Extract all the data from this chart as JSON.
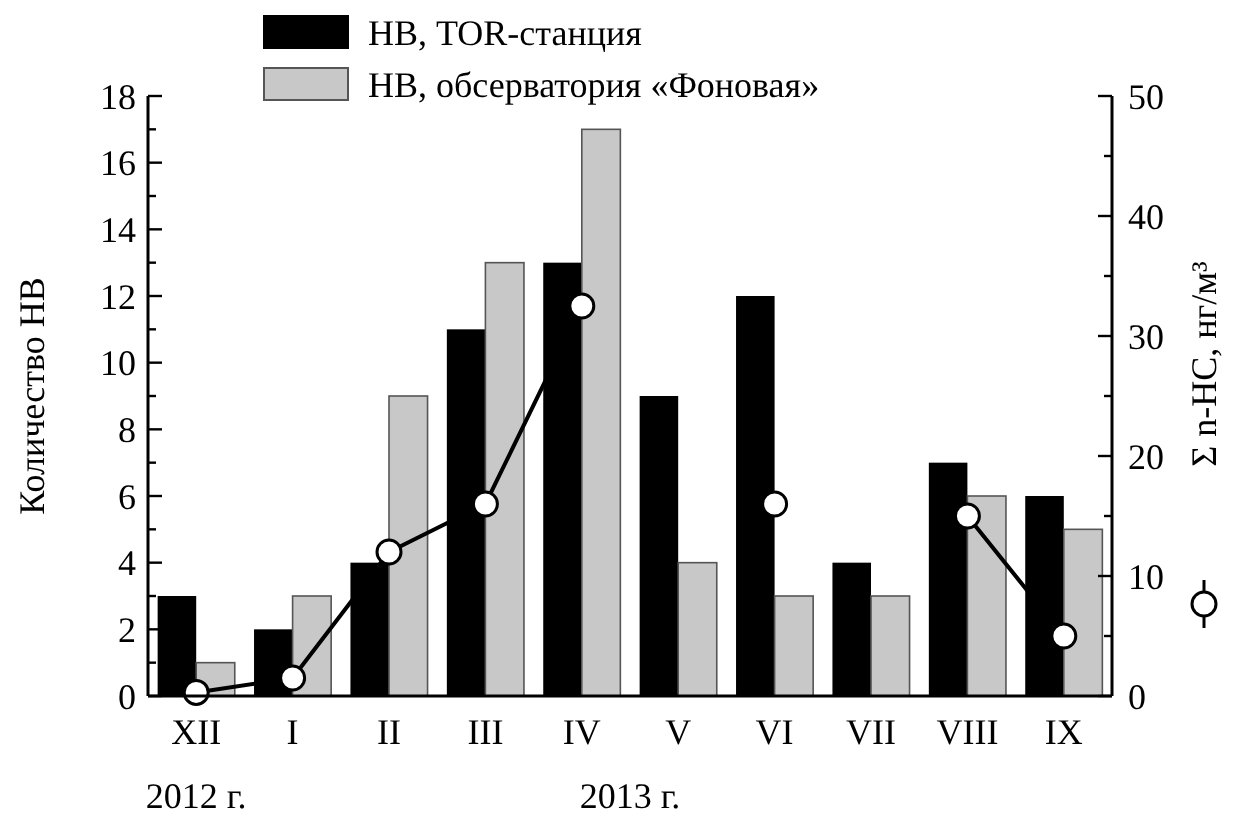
{
  "chart_data": {
    "type": "bar",
    "ylabel": "Количество НВ",
    "y2label": "Σ n-HC, нг/м³",
    "categories": [
      "XII",
      "I",
      "II",
      "III",
      "IV",
      "V",
      "VI",
      "VII",
      "VIII",
      "IX"
    ],
    "series": [
      {
        "name": "НВ, TOR-станция",
        "color": "#000000",
        "values": [
          3,
          2,
          4,
          11,
          13,
          9,
          12,
          4,
          7,
          6
        ]
      },
      {
        "name": "НВ, обсерватория «Фоновая»",
        "color": "#c8c8c8",
        "values": [
          1,
          3,
          9,
          13,
          17,
          4,
          3,
          3,
          6,
          5
        ]
      },
      {
        "type": "line",
        "axis": "y2",
        "color": "#000000",
        "marker": "circle",
        "values": [
          0.3,
          1.5,
          12,
          16,
          32.5,
          null,
          16,
          null,
          15,
          5
        ]
      }
    ],
    "ylim": [
      0,
      18
    ],
    "yticks": [
      0,
      {
        "value": 1,
        "label": null
      },
      2,
      {
        "value": 3,
        "label": null
      },
      4,
      {
        "value": 5,
        "label": null
      },
      6,
      {
        "value": 7,
        "label": null
      },
      8,
      {
        "value": 9,
        "label": null
      },
      10,
      {
        "value": 11,
        "label": null
      },
      12,
      {
        "value": 13,
        "label": null
      },
      14,
      {
        "value": 15,
        "label": null
      },
      16,
      {
        "value": 17,
        "label": null
      },
      18
    ],
    "y2lim": [
      0,
      50
    ],
    "y2ticks": [
      0,
      {
        "value": 5,
        "label": null
      },
      10,
      {
        "value": 15,
        "label": null
      },
      20,
      {
        "value": 25,
        "label": null
      },
      30,
      {
        "value": 35,
        "label": null
      },
      40,
      {
        "value": 45,
        "label": null
      },
      50
    ],
    "legend": "top",
    "grid": false,
    "annotations": [
      "2012 г.",
      "2013 г."
    ]
  }
}
